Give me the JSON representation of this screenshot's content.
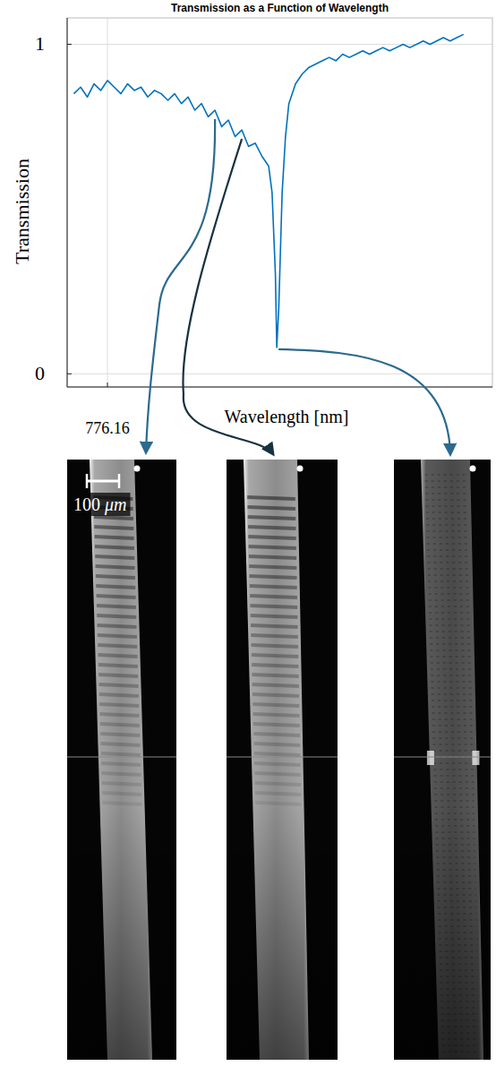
{
  "chart_data": {
    "type": "line",
    "title": "Transmission as a Function of Wavelength",
    "x_label": "Wavelength [nm]",
    "y_label": "Transmission",
    "x": [
      776.155,
      776.156,
      776.157,
      776.158,
      776.159,
      776.16,
      776.161,
      776.162,
      776.163,
      776.164,
      776.165,
      776.166,
      776.167,
      776.168,
      776.169,
      776.17,
      776.171,
      776.172,
      776.173,
      776.174,
      776.175,
      776.176,
      776.177,
      776.178,
      776.179,
      776.18,
      776.181,
      776.182,
      776.183,
      776.184,
      776.1845,
      776.185,
      776.1852,
      776.1855,
      776.186,
      776.1865,
      776.187,
      776.188,
      776.189,
      776.19,
      776.191,
      776.192,
      776.193,
      776.194,
      776.195,
      776.196,
      776.197,
      776.198,
      776.199,
      776.2,
      776.201,
      776.202,
      776.203,
      776.204,
      776.205,
      776.206,
      776.207,
      776.208,
      776.209,
      776.21,
      776.211,
      776.212,
      776.213
    ],
    "values": [
      0.85,
      0.87,
      0.84,
      0.88,
      0.86,
      0.89,
      0.87,
      0.85,
      0.88,
      0.86,
      0.87,
      0.84,
      0.86,
      0.85,
      0.83,
      0.85,
      0.82,
      0.84,
      0.8,
      0.82,
      0.78,
      0.8,
      0.75,
      0.77,
      0.72,
      0.74,
      0.69,
      0.7,
      0.66,
      0.63,
      0.55,
      0.3,
      0.08,
      0.2,
      0.55,
      0.72,
      0.82,
      0.88,
      0.91,
      0.93,
      0.94,
      0.95,
      0.96,
      0.95,
      0.97,
      0.96,
      0.97,
      0.98,
      0.97,
      0.98,
      0.99,
      0.98,
      0.99,
      1.0,
      0.99,
      1.0,
      1.01,
      1.0,
      1.01,
      1.02,
      1.01,
      1.02,
      1.03
    ],
    "color": "#0072bd",
    "xlim": [
      776.154,
      776.2173
    ],
    "ylim": [
      -0.04,
      1.08
    ],
    "xticks": [
      776.16
    ],
    "yticks": [
      0,
      1
    ],
    "grid": true,
    "annotations": [
      {
        "text": "100 μm"
      }
    ]
  }
}
